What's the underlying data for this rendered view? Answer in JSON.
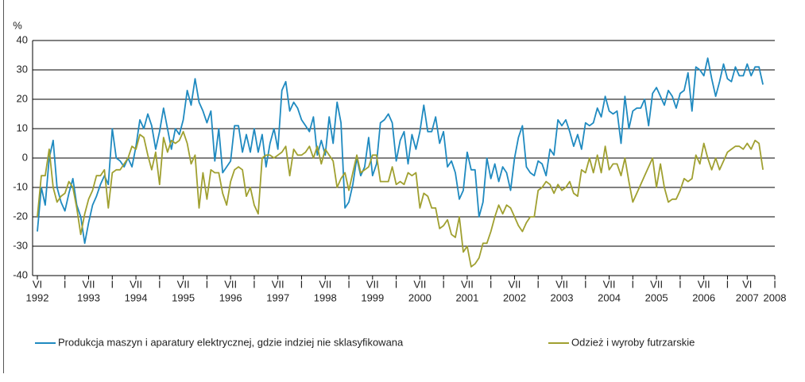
{
  "chart_data": {
    "type": "line",
    "y_label": "%",
    "ylim": [
      -40,
      40
    ],
    "yticks": [
      -40,
      -30,
      -20,
      -10,
      0,
      10,
      20,
      30,
      40
    ],
    "grid": true,
    "categories": [
      "VI",
      null,
      null,
      null,
      null,
      null,
      null,
      "I",
      null,
      null,
      null,
      null,
      null,
      "VII",
      null,
      null,
      null,
      null,
      null,
      "I",
      null,
      null,
      null,
      null,
      null,
      "VII",
      null,
      null,
      null,
      null,
      null,
      "I",
      null,
      null,
      null,
      null,
      null,
      "VII",
      null,
      null,
      null,
      null,
      null,
      "I",
      null,
      null,
      null,
      null,
      null,
      "VII",
      null,
      null,
      null,
      null,
      null,
      "I",
      null,
      null,
      null,
      null,
      null,
      "VII",
      null,
      null,
      null,
      null,
      null,
      "I",
      null,
      null,
      null,
      null,
      null,
      "VII",
      null,
      null,
      null,
      null,
      null,
      "I",
      null,
      null,
      null,
      null,
      null,
      "VII",
      null,
      null,
      null,
      null,
      null,
      "I",
      null,
      null,
      null,
      null,
      null,
      "VII",
      null,
      null,
      null,
      null,
      null,
      "I",
      null,
      null,
      null,
      null,
      null,
      "VII",
      null,
      null,
      null,
      null,
      null,
      "I",
      null,
      null,
      null,
      null,
      null,
      "VII",
      null,
      null,
      null,
      null,
      null,
      "I",
      null,
      null,
      null,
      null,
      null,
      "VII",
      null,
      null,
      null,
      null,
      null,
      "I",
      null,
      null,
      null,
      null,
      null,
      "VII",
      null,
      null,
      null,
      null,
      null,
      "I",
      null,
      null,
      null,
      null,
      null,
      "VII",
      null,
      null,
      null,
      null,
      null,
      "I",
      null,
      null,
      null,
      null,
      null,
      "VII",
      null,
      null,
      null,
      null,
      null,
      "I",
      null,
      null,
      null,
      null,
      "VI",
      null,
      null,
      null,
      null,
      null,
      null,
      "I"
    ],
    "category_years": [
      "1992",
      null,
      null,
      null,
      null,
      null,
      null,
      null,
      null,
      null,
      null,
      null,
      null,
      "1993",
      null,
      null,
      null,
      null,
      null,
      null,
      null,
      null,
      null,
      null,
      null,
      "1994",
      null,
      null,
      null,
      null,
      null,
      null,
      null,
      null,
      null,
      null,
      null,
      "1995",
      null,
      null,
      null,
      null,
      null,
      null,
      null,
      null,
      null,
      null,
      null,
      "1996",
      null,
      null,
      null,
      null,
      null,
      null,
      null,
      null,
      null,
      null,
      null,
      "1997",
      null,
      null,
      null,
      null,
      null,
      null,
      null,
      null,
      null,
      null,
      null,
      "1998",
      null,
      null,
      null,
      null,
      null,
      null,
      null,
      null,
      null,
      null,
      null,
      "1999",
      null,
      null,
      null,
      null,
      null,
      null,
      null,
      null,
      null,
      null,
      null,
      "2000",
      null,
      null,
      null,
      null,
      null,
      null,
      null,
      null,
      null,
      null,
      null,
      "2001",
      null,
      null,
      null,
      null,
      null,
      null,
      null,
      null,
      null,
      null,
      null,
      "2002",
      null,
      null,
      null,
      null,
      null,
      null,
      null,
      null,
      null,
      null,
      null,
      "2003",
      null,
      null,
      null,
      null,
      null,
      null,
      null,
      null,
      null,
      null,
      null,
      "2004",
      null,
      null,
      null,
      null,
      null,
      null,
      null,
      null,
      null,
      null,
      null,
      "2005",
      null,
      null,
      null,
      null,
      null,
      null,
      null,
      null,
      null,
      null,
      null,
      "2006",
      null,
      null,
      null,
      null,
      null,
      null,
      null,
      null,
      null,
      null,
      "2007",
      null,
      null,
      null,
      null,
      null,
      null,
      "2008"
    ],
    "series": [
      {
        "name": "Produkcja maszyn i aparatury elektrycznej, gdzie indziej nie sklasyfikowana",
        "color": "#1f8ac0",
        "values": [
          -25,
          -10,
          -16,
          0,
          6,
          -10,
          -15,
          -18,
          -12,
          -7,
          -16,
          -20,
          -29,
          -22,
          -16,
          -13,
          -9,
          -6,
          -9,
          10,
          0,
          -1,
          -3,
          0,
          -3,
          4,
          13,
          10,
          15,
          11,
          3,
          9,
          17,
          10,
          3,
          10,
          8,
          13,
          23,
          18,
          27,
          19,
          16,
          12,
          16,
          -1,
          10,
          -5,
          -3,
          -1,
          11,
          11,
          2,
          8,
          2,
          10,
          2,
          8,
          -3,
          5,
          10,
          3,
          23,
          26,
          16,
          19,
          17,
          13,
          11,
          9,
          14,
          1,
          6,
          1,
          14,
          5,
          19,
          12,
          -17,
          -15,
          -9,
          0,
          -6,
          -3,
          7,
          -6,
          -2,
          12,
          13,
          15,
          12,
          -1,
          6,
          9,
          -2,
          8,
          3,
          9,
          18,
          9,
          9,
          14,
          5,
          9,
          -3,
          -1,
          -5,
          -14,
          -11,
          2,
          -4,
          -4,
          -20,
          -15,
          0,
          -7,
          -2,
          -8,
          -3,
          -5,
          -11,
          0,
          7,
          11,
          -3,
          -5,
          -6,
          -1,
          -2,
          -6,
          3,
          1,
          13,
          11,
          13,
          9,
          4,
          8,
          3,
          12,
          11,
          12,
          17,
          14,
          21,
          16,
          15,
          16,
          5,
          21,
          10,
          16,
          17,
          17,
          20,
          11,
          22,
          24,
          21,
          18,
          23,
          21,
          17,
          22,
          23,
          29,
          16,
          31,
          30,
          28,
          34,
          27,
          21,
          26,
          32,
          27,
          26,
          31,
          28,
          28,
          32,
          28,
          31,
          31,
          25,
          null,
          null,
          null
        ]
      },
      {
        "name": "Odzież i wyroby futrzarskie",
        "color": "#a0a030",
        "values": [
          -20,
          -6,
          -6,
          3,
          -10,
          -15,
          -13,
          -12,
          -8,
          -10,
          -17,
          -26,
          -19,
          -14,
          -11,
          -6,
          -6,
          -4,
          -17,
          -5,
          -4,
          -4,
          -2,
          0,
          4,
          3,
          8,
          7,
          1,
          -4,
          2,
          -9,
          7,
          2,
          6,
          5,
          6,
          9,
          5,
          -2,
          1,
          -17,
          -5,
          -14,
          -4,
          -5,
          -5,
          -12,
          -16,
          -8,
          -4,
          -3,
          -4,
          -13,
          -10,
          -16,
          -19,
          0,
          1,
          1,
          0,
          1,
          2,
          4,
          -6,
          3,
          1,
          1,
          2,
          4,
          0,
          4,
          -2,
          3,
          1,
          -1,
          -10,
          -7,
          -5,
          -11,
          -5,
          1,
          -5,
          -4,
          -3,
          1,
          1,
          -8,
          -8,
          -8,
          -3,
          -9,
          -8,
          -9,
          -5,
          -6,
          -5,
          -17,
          -12,
          -13,
          -17,
          -17,
          -24,
          -23,
          -21,
          -26,
          -27,
          -20,
          -32,
          -30,
          -37,
          -36,
          -34,
          -29,
          -29,
          -25,
          -20,
          -16,
          -19,
          -16,
          -17,
          -20,
          -23,
          -25,
          -22,
          -20,
          -20,
          -11,
          -10,
          -8,
          -9,
          -12,
          -9,
          -11,
          -10,
          -8,
          -12,
          -13,
          -4,
          -5,
          0,
          -5,
          1,
          -5,
          4,
          -4,
          -2,
          -2,
          -6,
          0,
          -8,
          -15,
          -12,
          -9,
          -6,
          -3,
          0,
          -10,
          -2,
          -10,
          -15,
          -14,
          -14,
          -11,
          -7,
          -8,
          -7,
          1,
          -2,
          5,
          0,
          -4,
          0,
          -4,
          -1,
          2,
          3,
          4,
          4,
          3,
          5,
          3,
          6,
          5,
          -4,
          null,
          null,
          null
        ]
      }
    ]
  }
}
